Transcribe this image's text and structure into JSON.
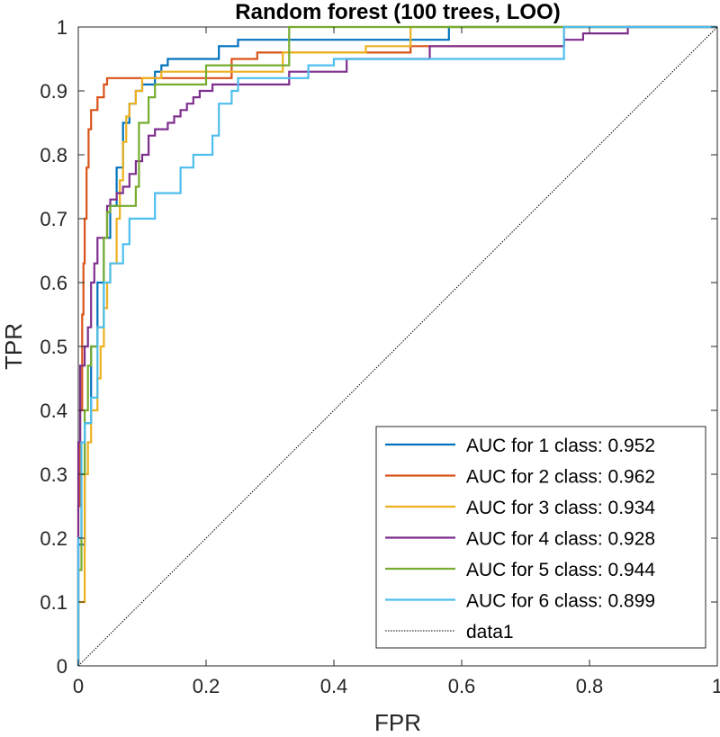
{
  "chart_data": {
    "type": "line",
    "title": "Random forest (100 trees, LOO)",
    "xlabel": "FPR",
    "ylabel": "TPR",
    "xlim": [
      0,
      1
    ],
    "ylim": [
      0,
      1
    ],
    "xticks": [
      0,
      0.2,
      0.4,
      0.6,
      0.8,
      1
    ],
    "yticks": [
      0,
      0.1,
      0.2,
      0.3,
      0.4,
      0.5,
      0.6,
      0.7,
      0.8,
      0.9,
      1
    ],
    "xtick_labels": [
      "0",
      "0.2",
      "0.4",
      "0.6",
      "0.8",
      "1"
    ],
    "ytick_labels": [
      "0",
      "0.1",
      "0.2",
      "0.3",
      "0.4",
      "0.5",
      "0.6",
      "0.7",
      "0.8",
      "0.9",
      "1"
    ],
    "grid": false,
    "legend_position": "bottom-right",
    "series": [
      {
        "name": "AUC for 1 class: 0.952",
        "color": "#0072BD",
        "points": [
          [
            0,
            0
          ],
          [
            0,
            0.19
          ],
          [
            0.01,
            0.19
          ],
          [
            0.01,
            0.38
          ],
          [
            0.02,
            0.38
          ],
          [
            0.02,
            0.5
          ],
          [
            0.03,
            0.5
          ],
          [
            0.03,
            0.6
          ],
          [
            0.04,
            0.6
          ],
          [
            0.04,
            0.67
          ],
          [
            0.05,
            0.67
          ],
          [
            0.05,
            0.72
          ],
          [
            0.06,
            0.72
          ],
          [
            0.06,
            0.78
          ],
          [
            0.07,
            0.78
          ],
          [
            0.07,
            0.85
          ],
          [
            0.08,
            0.85
          ],
          [
            0.08,
            0.88
          ],
          [
            0.09,
            0.88
          ],
          [
            0.09,
            0.9
          ],
          [
            0.1,
            0.9
          ],
          [
            0.1,
            0.91
          ],
          [
            0.12,
            0.91
          ],
          [
            0.12,
            0.93
          ],
          [
            0.13,
            0.93
          ],
          [
            0.13,
            0.94
          ],
          [
            0.14,
            0.94
          ],
          [
            0.14,
            0.95
          ],
          [
            0.22,
            0.95
          ],
          [
            0.22,
            0.97
          ],
          [
            0.25,
            0.97
          ],
          [
            0.25,
            0.98
          ],
          [
            0.58,
            0.98
          ],
          [
            0.58,
            1.0
          ],
          [
            1,
            1
          ]
        ]
      },
      {
        "name": "AUC for 2 class: 0.962",
        "color": "#D95319",
        "points": [
          [
            0,
            0
          ],
          [
            0,
            0.25
          ],
          [
            0.003,
            0.25
          ],
          [
            0.003,
            0.4
          ],
          [
            0.006,
            0.4
          ],
          [
            0.006,
            0.55
          ],
          [
            0.008,
            0.55
          ],
          [
            0.008,
            0.63
          ],
          [
            0.01,
            0.63
          ],
          [
            0.01,
            0.7
          ],
          [
            0.013,
            0.7
          ],
          [
            0.013,
            0.78
          ],
          [
            0.016,
            0.78
          ],
          [
            0.016,
            0.84
          ],
          [
            0.02,
            0.84
          ],
          [
            0.02,
            0.87
          ],
          [
            0.03,
            0.87
          ],
          [
            0.03,
            0.89
          ],
          [
            0.04,
            0.89
          ],
          [
            0.04,
            0.91
          ],
          [
            0.045,
            0.91
          ],
          [
            0.045,
            0.92
          ],
          [
            0.24,
            0.92
          ],
          [
            0.24,
            0.95
          ],
          [
            0.28,
            0.95
          ],
          [
            0.28,
            0.96
          ],
          [
            0.52,
            0.96
          ],
          [
            0.52,
            0.97
          ],
          [
            0.76,
            0.97
          ],
          [
            0.76,
            1.0
          ],
          [
            1,
            1
          ]
        ]
      },
      {
        "name": "AUC for 3 class: 0.934",
        "color": "#EDB120",
        "points": [
          [
            0,
            0
          ],
          [
            0,
            0.1
          ],
          [
            0.01,
            0.1
          ],
          [
            0.01,
            0.3
          ],
          [
            0.015,
            0.3
          ],
          [
            0.015,
            0.35
          ],
          [
            0.02,
            0.35
          ],
          [
            0.02,
            0.4
          ],
          [
            0.03,
            0.4
          ],
          [
            0.03,
            0.45
          ],
          [
            0.035,
            0.45
          ],
          [
            0.035,
            0.5
          ],
          [
            0.04,
            0.5
          ],
          [
            0.04,
            0.56
          ],
          [
            0.045,
            0.56
          ],
          [
            0.045,
            0.6
          ],
          [
            0.05,
            0.6
          ],
          [
            0.05,
            0.63
          ],
          [
            0.06,
            0.63
          ],
          [
            0.06,
            0.7
          ],
          [
            0.065,
            0.7
          ],
          [
            0.065,
            0.76
          ],
          [
            0.07,
            0.76
          ],
          [
            0.07,
            0.82
          ],
          [
            0.075,
            0.82
          ],
          [
            0.075,
            0.86
          ],
          [
            0.08,
            0.86
          ],
          [
            0.08,
            0.88
          ],
          [
            0.09,
            0.88
          ],
          [
            0.09,
            0.9
          ],
          [
            0.1,
            0.9
          ],
          [
            0.1,
            0.92
          ],
          [
            0.13,
            0.92
          ],
          [
            0.13,
            0.93
          ],
          [
            0.32,
            0.93
          ],
          [
            0.32,
            0.96
          ],
          [
            0.45,
            0.96
          ],
          [
            0.45,
            0.97
          ],
          [
            0.52,
            0.97
          ],
          [
            0.52,
            1.0
          ],
          [
            1,
            1
          ]
        ]
      },
      {
        "name": "AUC for 4 class: 0.928",
        "color": "#7E2F8E",
        "points": [
          [
            0,
            0
          ],
          [
            0,
            0.35
          ],
          [
            0.003,
            0.35
          ],
          [
            0.003,
            0.47
          ],
          [
            0.01,
            0.47
          ],
          [
            0.01,
            0.5
          ],
          [
            0.015,
            0.5
          ],
          [
            0.015,
            0.53
          ],
          [
            0.02,
            0.53
          ],
          [
            0.02,
            0.6
          ],
          [
            0.025,
            0.6
          ],
          [
            0.025,
            0.63
          ],
          [
            0.03,
            0.63
          ],
          [
            0.03,
            0.67
          ],
          [
            0.045,
            0.67
          ],
          [
            0.045,
            0.72
          ],
          [
            0.05,
            0.72
          ],
          [
            0.05,
            0.73
          ],
          [
            0.06,
            0.73
          ],
          [
            0.06,
            0.74
          ],
          [
            0.07,
            0.74
          ],
          [
            0.07,
            0.75
          ],
          [
            0.08,
            0.75
          ],
          [
            0.08,
            0.77
          ],
          [
            0.09,
            0.77
          ],
          [
            0.09,
            0.79
          ],
          [
            0.1,
            0.79
          ],
          [
            0.1,
            0.8
          ],
          [
            0.11,
            0.8
          ],
          [
            0.11,
            0.83
          ],
          [
            0.12,
            0.83
          ],
          [
            0.12,
            0.84
          ],
          [
            0.14,
            0.84
          ],
          [
            0.14,
            0.85
          ],
          [
            0.15,
            0.85
          ],
          [
            0.15,
            0.86
          ],
          [
            0.16,
            0.86
          ],
          [
            0.16,
            0.87
          ],
          [
            0.17,
            0.87
          ],
          [
            0.17,
            0.88
          ],
          [
            0.18,
            0.88
          ],
          [
            0.18,
            0.89
          ],
          [
            0.19,
            0.89
          ],
          [
            0.19,
            0.9
          ],
          [
            0.21,
            0.9
          ],
          [
            0.21,
            0.91
          ],
          [
            0.33,
            0.91
          ],
          [
            0.33,
            0.93
          ],
          [
            0.42,
            0.93
          ],
          [
            0.42,
            0.95
          ],
          [
            0.55,
            0.95
          ],
          [
            0.55,
            0.97
          ],
          [
            0.76,
            0.97
          ],
          [
            0.76,
            0.98
          ],
          [
            0.79,
            0.98
          ],
          [
            0.79,
            0.99
          ],
          [
            0.86,
            0.99
          ],
          [
            0.86,
            1.0
          ],
          [
            1,
            1
          ]
        ]
      },
      {
        "name": "AUC for 5 class: 0.944",
        "color": "#77AC30",
        "points": [
          [
            0,
            0
          ],
          [
            0,
            0.15
          ],
          [
            0.005,
            0.15
          ],
          [
            0.005,
            0.3
          ],
          [
            0.01,
            0.3
          ],
          [
            0.01,
            0.4
          ],
          [
            0.015,
            0.4
          ],
          [
            0.015,
            0.47
          ],
          [
            0.02,
            0.47
          ],
          [
            0.02,
            0.5
          ],
          [
            0.03,
            0.5
          ],
          [
            0.03,
            0.53
          ],
          [
            0.04,
            0.53
          ],
          [
            0.04,
            0.67
          ],
          [
            0.045,
            0.67
          ],
          [
            0.045,
            0.71
          ],
          [
            0.05,
            0.71
          ],
          [
            0.05,
            0.72
          ],
          [
            0.09,
            0.72
          ],
          [
            0.09,
            0.75
          ],
          [
            0.095,
            0.75
          ],
          [
            0.095,
            0.85
          ],
          [
            0.11,
            0.85
          ],
          [
            0.11,
            0.89
          ],
          [
            0.12,
            0.89
          ],
          [
            0.12,
            0.91
          ],
          [
            0.2,
            0.91
          ],
          [
            0.2,
            0.94
          ],
          [
            0.33,
            0.94
          ],
          [
            0.33,
            1.0
          ],
          [
            1,
            1
          ]
        ]
      },
      {
        "name": "AUC for 6 class: 0.899",
        "color": "#4DBEEE",
        "points": [
          [
            0,
            0
          ],
          [
            0,
            0.2
          ],
          [
            0.005,
            0.2
          ],
          [
            0.005,
            0.35
          ],
          [
            0.01,
            0.35
          ],
          [
            0.01,
            0.38
          ],
          [
            0.02,
            0.38
          ],
          [
            0.02,
            0.42
          ],
          [
            0.03,
            0.42
          ],
          [
            0.03,
            0.53
          ],
          [
            0.04,
            0.53
          ],
          [
            0.04,
            0.6
          ],
          [
            0.05,
            0.6
          ],
          [
            0.05,
            0.63
          ],
          [
            0.07,
            0.63
          ],
          [
            0.07,
            0.66
          ],
          [
            0.08,
            0.66
          ],
          [
            0.08,
            0.7
          ],
          [
            0.09,
            0.7
          ],
          [
            0.09,
            0.7
          ],
          [
            0.12,
            0.7
          ],
          [
            0.12,
            0.74
          ],
          [
            0.16,
            0.74
          ],
          [
            0.16,
            0.78
          ],
          [
            0.18,
            0.78
          ],
          [
            0.18,
            0.8
          ],
          [
            0.21,
            0.8
          ],
          [
            0.21,
            0.83
          ],
          [
            0.22,
            0.83
          ],
          [
            0.22,
            0.88
          ],
          [
            0.24,
            0.88
          ],
          [
            0.24,
            0.9
          ],
          [
            0.25,
            0.9
          ],
          [
            0.25,
            0.92
          ],
          [
            0.36,
            0.92
          ],
          [
            0.36,
            0.94
          ],
          [
            0.4,
            0.94
          ],
          [
            0.4,
            0.95
          ],
          [
            0.76,
            0.95
          ],
          [
            0.76,
            1.0
          ],
          [
            1,
            1
          ]
        ]
      },
      {
        "name": "data1",
        "color": "#000000",
        "dashed": true,
        "points": [
          [
            0,
            0
          ],
          [
            1,
            1
          ]
        ]
      }
    ]
  }
}
